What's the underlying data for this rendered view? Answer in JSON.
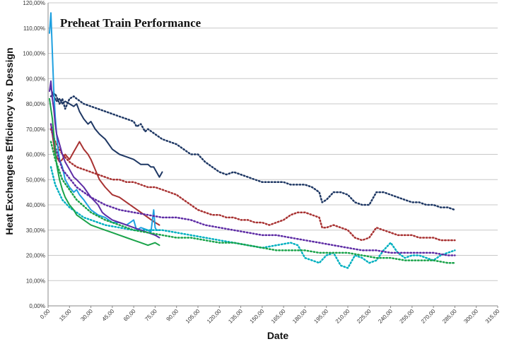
{
  "chart_data": {
    "type": "line",
    "title": "Preheat Train Performance",
    "xlabel": "Date",
    "ylabel": "Heat Exchangers Efficiency vs. Dessign",
    "xlim": [
      0,
      315
    ],
    "ylim": [
      0,
      120
    ],
    "x_ticks": [
      "0,00",
      "15,00",
      "30,00",
      "45,00",
      "60,00",
      "75,00",
      "90,00",
      "105,00",
      "120,00",
      "135,00",
      "150,00",
      "165,00",
      "180,00",
      "195,00",
      "210,00",
      "225,00",
      "240,00",
      "255,00",
      "270,00",
      "285,00",
      "300,00",
      "315,00"
    ],
    "y_ticks": [
      "0,00%",
      "10,00%",
      "20,00%",
      "30,00%",
      "40,00%",
      "50,00%",
      "60,00%",
      "70,00%",
      "80,00%",
      "90,00%",
      "100,00%",
      "110,00%",
      "120,00%"
    ],
    "grid": "horizontal",
    "series": [
      {
        "color": "#1f3864",
        "dash": "solid",
        "x": [
          2,
          4,
          6,
          8,
          10,
          12,
          15,
          18,
          20,
          22,
          25,
          28,
          30,
          33,
          36,
          40,
          45,
          50,
          55,
          60,
          65,
          70,
          72,
          74,
          76,
          78,
          80
        ],
        "y": [
          86,
          83,
          81,
          82,
          80,
          81,
          80,
          79,
          80,
          77,
          74,
          72,
          73,
          70,
          68,
          66,
          62,
          60,
          59,
          58,
          56,
          56,
          55,
          55,
          53,
          51,
          53
        ]
      },
      {
        "color": "#1f3864",
        "dash": "dotted",
        "x": [
          2,
          5,
          8,
          10,
          12,
          15,
          18,
          20,
          25,
          30,
          35,
          40,
          45,
          50,
          55,
          60,
          62,
          65,
          68,
          70,
          75,
          80,
          85,
          90,
          95,
          100,
          105,
          110,
          115,
          120,
          125,
          130,
          135,
          140,
          145,
          150,
          155,
          160,
          165,
          170,
          175,
          180,
          185,
          190,
          192,
          195,
          200,
          205,
          210,
          215,
          220,
          225,
          230,
          235,
          240,
          245,
          250,
          255,
          260,
          265,
          270,
          275,
          280,
          285
        ],
        "y": [
          83,
          84,
          80,
          82,
          78,
          82,
          83,
          82,
          80,
          79,
          78,
          77,
          76,
          75,
          74,
          73,
          71,
          72,
          69,
          70,
          68,
          66,
          65,
          64,
          62,
          60,
          60,
          57,
          55,
          53,
          52,
          53,
          52,
          51,
          50,
          49,
          49,
          49,
          49,
          48,
          48,
          48,
          47,
          45,
          41,
          42,
          45,
          45,
          44,
          41,
          40,
          40,
          45,
          45,
          44,
          43,
          42,
          41,
          41,
          40,
          40,
          39,
          39,
          38
        ]
      },
      {
        "color": "#a83232",
        "dash": "solid",
        "x": [
          2,
          5,
          8,
          10,
          12,
          15,
          18,
          20,
          22,
          25,
          28,
          30,
          33,
          36,
          40,
          45,
          50,
          55,
          60,
          65,
          70,
          75,
          78
        ],
        "y": [
          72,
          60,
          57,
          58,
          60,
          58,
          61,
          63,
          65,
          62,
          60,
          58,
          54,
          50,
          47,
          44,
          43,
          41,
          39,
          37,
          35,
          33,
          32
        ]
      },
      {
        "color": "#a83232",
        "dash": "dotted",
        "x": [
          2,
          5,
          10,
          15,
          20,
          25,
          30,
          35,
          40,
          45,
          50,
          55,
          60,
          65,
          70,
          75,
          80,
          85,
          90,
          95,
          100,
          105,
          110,
          115,
          120,
          125,
          130,
          135,
          140,
          145,
          150,
          155,
          160,
          165,
          170,
          175,
          180,
          185,
          190,
          192,
          195,
          200,
          205,
          210,
          215,
          220,
          225,
          230,
          235,
          240,
          245,
          250,
          255,
          260,
          265,
          270,
          275,
          280,
          285
        ],
        "y": [
          70,
          65,
          60,
          57,
          55,
          54,
          53,
          52,
          51,
          50,
          50,
          49,
          49,
          48,
          47,
          47,
          46,
          45,
          44,
          42,
          40,
          38,
          37,
          36,
          36,
          35,
          35,
          34,
          34,
          33,
          33,
          32,
          33,
          34,
          36,
          37,
          37,
          36,
          35,
          31,
          31,
          32,
          31,
          30,
          27,
          26,
          27,
          31,
          30,
          29,
          28,
          28,
          28,
          27,
          27,
          27,
          26,
          26,
          26
        ]
      },
      {
        "color": "#1ea0e0",
        "dash": "solid",
        "x": [
          1,
          2,
          3,
          4,
          5,
          6,
          7,
          8,
          10,
          12,
          15,
          18,
          20,
          22,
          25,
          30,
          35,
          40,
          45,
          50,
          55,
          60,
          62,
          65,
          70,
          72,
          74,
          75,
          76,
          78
        ],
        "y": [
          108,
          116,
          100,
          85,
          75,
          68,
          62,
          58,
          55,
          50,
          47,
          45,
          46,
          44,
          42,
          38,
          36,
          35,
          33,
          33,
          32,
          34,
          30,
          31,
          30,
          29,
          38,
          31,
          30,
          30
        ]
      },
      {
        "color": "#00b0c0",
        "dash": "dotted",
        "x": [
          2,
          5,
          10,
          15,
          20,
          25,
          30,
          40,
          50,
          60,
          70,
          80,
          90,
          100,
          110,
          120,
          130,
          140,
          150,
          160,
          170,
          175,
          180,
          185,
          190,
          195,
          200,
          205,
          210,
          215,
          220,
          225,
          230,
          235,
          240,
          245,
          250,
          255,
          260,
          265,
          270,
          275,
          280,
          285
        ],
        "y": [
          55,
          48,
          42,
          39,
          37,
          35,
          34,
          32,
          31,
          30,
          30,
          30,
          29,
          28,
          27,
          26,
          25,
          24,
          23,
          24,
          25,
          24,
          19,
          18,
          17,
          20,
          21,
          16,
          15,
          20,
          19,
          17,
          18,
          22,
          25,
          21,
          19,
          20,
          20,
          19,
          18,
          20,
          21,
          22
        ]
      },
      {
        "color": "#5e2ca5",
        "dash": "solid",
        "x": [
          1,
          2,
          3,
          4,
          5,
          6,
          8,
          10,
          12,
          15,
          18,
          20,
          25,
          30,
          35,
          38,
          40,
          45,
          50,
          55,
          60,
          65,
          70,
          75,
          78
        ],
        "y": [
          85,
          89,
          82,
          78,
          72,
          68,
          64,
          60,
          57,
          54,
          51,
          50,
          47,
          43,
          40,
          37,
          36,
          34,
          33,
          32,
          31,
          30,
          29,
          28,
          27
        ]
      },
      {
        "color": "#5e2ca5",
        "dash": "dotted",
        "x": [
          2,
          5,
          10,
          20,
          30,
          40,
          50,
          60,
          70,
          80,
          90,
          100,
          110,
          120,
          130,
          140,
          150,
          160,
          170,
          180,
          190,
          200,
          210,
          220,
          230,
          240,
          250,
          260,
          270,
          280,
          285
        ],
        "y": [
          72,
          63,
          54,
          47,
          43,
          40,
          38,
          37,
          36,
          35,
          35,
          34,
          32,
          31,
          30,
          29,
          28,
          28,
          27,
          26,
          25,
          24,
          23,
          22,
          22,
          21,
          21,
          21,
          21,
          20,
          20
        ]
      },
      {
        "color": "#1aa34a",
        "dash": "solid",
        "x": [
          1,
          2,
          3,
          4,
          5,
          6,
          8,
          10,
          12,
          15,
          18,
          20,
          25,
          30,
          35,
          40,
          45,
          50,
          55,
          60,
          65,
          70,
          75,
          78
        ],
        "y": [
          82,
          78,
          74,
          68,
          62,
          56,
          50,
          46,
          43,
          40,
          38,
          36,
          34,
          32,
          31,
          30,
          29,
          28,
          27,
          26,
          25,
          24,
          25,
          24
        ]
      },
      {
        "color": "#1aa34a",
        "dash": "dotted",
        "x": [
          2,
          5,
          10,
          20,
          30,
          40,
          50,
          60,
          70,
          80,
          90,
          100,
          110,
          120,
          130,
          140,
          150,
          160,
          170,
          180,
          190,
          200,
          210,
          220,
          230,
          240,
          250,
          260,
          270,
          280,
          285
        ],
        "y": [
          65,
          58,
          50,
          42,
          37,
          34,
          32,
          30,
          29,
          28,
          27,
          27,
          26,
          25,
          25,
          24,
          23,
          22,
          22,
          22,
          21,
          21,
          21,
          20,
          19,
          19,
          18,
          18,
          18,
          17,
          17
        ]
      }
    ]
  }
}
